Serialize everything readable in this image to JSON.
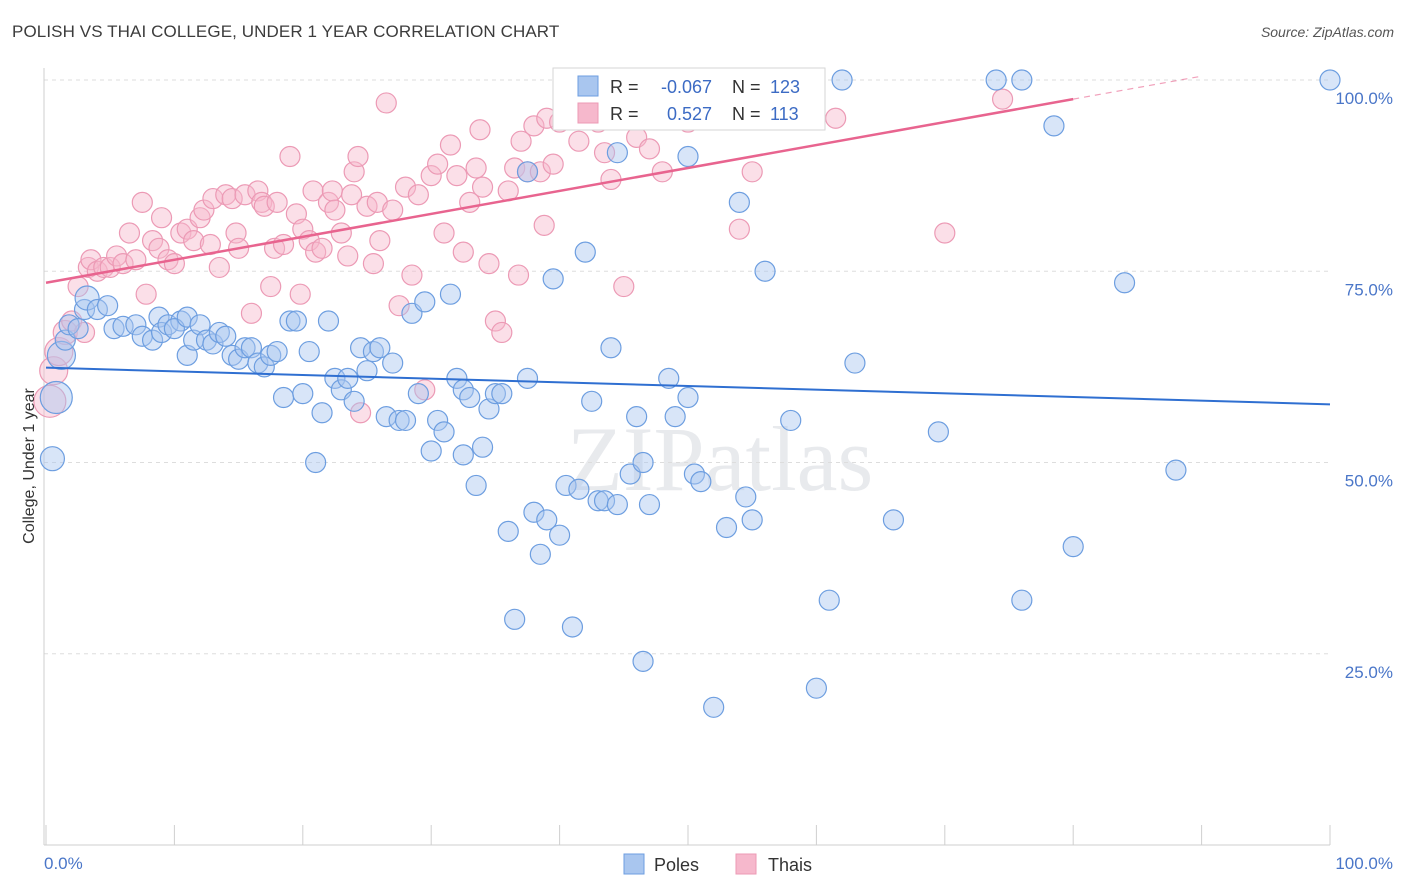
{
  "header": {
    "title": "POLISH VS THAI COLLEGE, UNDER 1 YEAR CORRELATION CHART",
    "source": "Source: ZipAtlas.com"
  },
  "watermark": "ZIPatlas",
  "colors": {
    "poles_fill": "#a9c6ef",
    "poles_stroke": "#6d9ee0",
    "poles_line": "#2f6fd1",
    "thais_fill": "#f6b8cc",
    "thais_stroke": "#ec9ab5",
    "thais_line": "#e8648f",
    "grid": "#dddddd",
    "tick_text": "#4a76c8"
  },
  "legend": {
    "rows": [
      {
        "r_label": "R =",
        "r_value": "-0.067",
        "n_label": "N =",
        "n_value": "123"
      },
      {
        "r_label": "R =",
        "r_value": "0.527",
        "n_label": "N =",
        "n_value": "113"
      }
    ]
  },
  "bottom_legend": {
    "poles": "Poles",
    "thais": "Thais"
  },
  "chart_data": {
    "type": "scatter",
    "title": "POLISH VS THAI COLLEGE, UNDER 1 YEAR CORRELATION CHART",
    "xlabel": "",
    "ylabel": "College, Under 1 year",
    "xlim": [
      0,
      100
    ],
    "ylim": [
      0,
      100
    ],
    "x_tick_labels": [
      "0.0%",
      "100.0%"
    ],
    "y_tick_labels": [
      "25.0%",
      "50.0%",
      "75.0%",
      "100.0%"
    ],
    "y_ticks": [
      25,
      50,
      75,
      100
    ],
    "grid": true,
    "legend_position": "top-center",
    "series": [
      {
        "name": "Poles",
        "R": -0.067,
        "N": 123,
        "trend": {
          "x": [
            0,
            100
          ],
          "y": [
            62.4,
            57.6
          ]
        },
        "points": [
          [
            0.5,
            50.5,
            12
          ],
          [
            0.8,
            58.5,
            16
          ],
          [
            1.2,
            64.0,
            14
          ],
          [
            1.5,
            66.0,
            10
          ],
          [
            1.8,
            68.0,
            10
          ],
          [
            2.5,
            67.5,
            10
          ],
          [
            3.0,
            70.0,
            10
          ],
          [
            3.2,
            71.5,
            12
          ],
          [
            4.0,
            70.0,
            10
          ],
          [
            4.8,
            70.5,
            10
          ],
          [
            5.3,
            67.5,
            10
          ],
          [
            6.0,
            67.8,
            10
          ],
          [
            7.0,
            68.0,
            10
          ],
          [
            7.5,
            66.5,
            10
          ],
          [
            8.3,
            66.0,
            10
          ],
          [
            8.8,
            69.0,
            10
          ],
          [
            9.0,
            67.0,
            10
          ],
          [
            9.5,
            68.0,
            10
          ],
          [
            10.5,
            68.5,
            10
          ],
          [
            10.0,
            67.5,
            10
          ],
          [
            11.0,
            69.0,
            10
          ],
          [
            11.0,
            64.0,
            10
          ],
          [
            11.5,
            66.0,
            10
          ],
          [
            12.0,
            68.0,
            10
          ],
          [
            12.5,
            66.0,
            10
          ],
          [
            13.0,
            65.5,
            10
          ],
          [
            13.5,
            67.0,
            10
          ],
          [
            14.0,
            66.5,
            10
          ],
          [
            14.5,
            64.0,
            10
          ],
          [
            15.0,
            63.5,
            10
          ],
          [
            15.5,
            65.0,
            10
          ],
          [
            16.0,
            65.0,
            10
          ],
          [
            16.5,
            63.0,
            10
          ],
          [
            17.0,
            62.5,
            10
          ],
          [
            17.5,
            64.0,
            10
          ],
          [
            18.0,
            64.5,
            10
          ],
          [
            18.5,
            58.5,
            10
          ],
          [
            19.0,
            68.5,
            10
          ],
          [
            19.5,
            68.5,
            10
          ],
          [
            20.0,
            59.0,
            10
          ],
          [
            20.5,
            64.5,
            10
          ],
          [
            21.0,
            50.0,
            10
          ],
          [
            21.5,
            56.5,
            10
          ],
          [
            22.0,
            68.5,
            10
          ],
          [
            22.5,
            61.0,
            10
          ],
          [
            23.0,
            59.5,
            10
          ],
          [
            23.5,
            61.0,
            10
          ],
          [
            24.0,
            58.0,
            10
          ],
          [
            24.5,
            65.0,
            10
          ],
          [
            25.0,
            62.0,
            10
          ],
          [
            25.5,
            64.5,
            10
          ],
          [
            26.0,
            65.0,
            10
          ],
          [
            26.5,
            56.0,
            10
          ],
          [
            27.0,
            63.0,
            10
          ],
          [
            27.5,
            55.5,
            10
          ],
          [
            28.0,
            55.5,
            10
          ],
          [
            28.5,
            69.5,
            10
          ],
          [
            29.0,
            59.0,
            10
          ],
          [
            29.5,
            71.0,
            10
          ],
          [
            30.0,
            51.5,
            10
          ],
          [
            30.5,
            55.5,
            10
          ],
          [
            31.0,
            54.0,
            10
          ],
          [
            31.5,
            72.0,
            10
          ],
          [
            32.0,
            61.0,
            10
          ],
          [
            32.5,
            59.5,
            10
          ],
          [
            32.5,
            51.0,
            10
          ],
          [
            33.0,
            58.5,
            10
          ],
          [
            33.5,
            47.0,
            10
          ],
          [
            34.0,
            52.0,
            10
          ],
          [
            34.5,
            57.0,
            10
          ],
          [
            35.0,
            59.0,
            10
          ],
          [
            35.5,
            59.0,
            10
          ],
          [
            36.0,
            41.0,
            10
          ],
          [
            36.5,
            29.5,
            10
          ],
          [
            37.5,
            88.0,
            10
          ],
          [
            37.5,
            61.0,
            10
          ],
          [
            38.0,
            43.5,
            10
          ],
          [
            38.5,
            38.0,
            10
          ],
          [
            39.0,
            42.5,
            10
          ],
          [
            39.5,
            74.0,
            10
          ],
          [
            40.0,
            40.5,
            10
          ],
          [
            40.5,
            47.0,
            10
          ],
          [
            41.0,
            28.5,
            10
          ],
          [
            41.5,
            46.5,
            10
          ],
          [
            42.0,
            77.5,
            10
          ],
          [
            42.5,
            58.0,
            10
          ],
          [
            43.0,
            45.0,
            10
          ],
          [
            43.5,
            45.0,
            10
          ],
          [
            44.0,
            65.0,
            10
          ],
          [
            44.5,
            44.5,
            10
          ],
          [
            44.5,
            90.5,
            10
          ],
          [
            45.5,
            48.5,
            10
          ],
          [
            46.0,
            56.0,
            10
          ],
          [
            46.5,
            50.0,
            10
          ],
          [
            46.5,
            24.0,
            10
          ],
          [
            47.0,
            44.5,
            10
          ],
          [
            48.0,
            100.0,
            10
          ],
          [
            48.5,
            61.0,
            10
          ],
          [
            49.0,
            56.0,
            10
          ],
          [
            50.0,
            90.0,
            10
          ],
          [
            50.0,
            58.5,
            10
          ],
          [
            50.5,
            48.5,
            10
          ],
          [
            51.0,
            47.5,
            10
          ],
          [
            53.0,
            41.5,
            10
          ],
          [
            54.0,
            84.0,
            10
          ],
          [
            54.5,
            45.5,
            10
          ],
          [
            55.0,
            42.5,
            10
          ],
          [
            56.0,
            75.0,
            10
          ],
          [
            52.0,
            18.0,
            10
          ],
          [
            58.0,
            55.5,
            10
          ],
          [
            60.0,
            20.5,
            10
          ],
          [
            61.0,
            32.0,
            10
          ],
          [
            62.0,
            100.0,
            10
          ],
          [
            63.0,
            63.0,
            10
          ],
          [
            66.0,
            42.5,
            10
          ],
          [
            69.5,
            54.0,
            10
          ],
          [
            74.0,
            100.0,
            10
          ],
          [
            76.0,
            100.0,
            10
          ],
          [
            76.0,
            32.0,
            10
          ],
          [
            78.5,
            94.0,
            10
          ],
          [
            80.0,
            39.0,
            10
          ],
          [
            84.0,
            73.5,
            10
          ],
          [
            88.0,
            49.0,
            10
          ],
          [
            100.0,
            100.0,
            10
          ]
        ]
      },
      {
        "name": "Thais",
        "R": 0.527,
        "N": 113,
        "trend": {
          "x": [
            0,
            80
          ],
          "y": [
            73.5,
            97.5
          ]
        },
        "points": [
          [
            0.3,
            58.0,
            16
          ],
          [
            0.6,
            62.0,
            14
          ],
          [
            1.0,
            64.5,
            14
          ],
          [
            1.5,
            67.0,
            12
          ],
          [
            2.0,
            68.5,
            10
          ],
          [
            2.5,
            73.0,
            10
          ],
          [
            3.0,
            67.0,
            10
          ],
          [
            3.3,
            75.5,
            10
          ],
          [
            3.5,
            76.5,
            10
          ],
          [
            4.0,
            75.0,
            10
          ],
          [
            4.5,
            75.5,
            10
          ],
          [
            5.0,
            75.5,
            10
          ],
          [
            5.5,
            77.0,
            10
          ],
          [
            6.0,
            76.0,
            10
          ],
          [
            6.5,
            80.0,
            10
          ],
          [
            7.0,
            76.5,
            10
          ],
          [
            7.5,
            84.0,
            10
          ],
          [
            7.8,
            72.0,
            10
          ],
          [
            8.3,
            79.0,
            10
          ],
          [
            8.8,
            78.0,
            10
          ],
          [
            9.0,
            82.0,
            10
          ],
          [
            9.5,
            76.5,
            10
          ],
          [
            10.0,
            76.0,
            10
          ],
          [
            10.5,
            80.0,
            10
          ],
          [
            11.0,
            80.5,
            10
          ],
          [
            11.5,
            79.0,
            10
          ],
          [
            12.0,
            82.0,
            10
          ],
          [
            12.3,
            83.0,
            10
          ],
          [
            12.8,
            78.5,
            10
          ],
          [
            13.0,
            84.5,
            10
          ],
          [
            13.5,
            75.5,
            10
          ],
          [
            14.0,
            85.0,
            10
          ],
          [
            14.5,
            84.5,
            10
          ],
          [
            14.8,
            80.0,
            10
          ],
          [
            15.0,
            78.0,
            10
          ],
          [
            15.5,
            85.0,
            10
          ],
          [
            16.0,
            69.5,
            10
          ],
          [
            16.5,
            85.5,
            10
          ],
          [
            16.8,
            84.0,
            10
          ],
          [
            17.0,
            83.5,
            10
          ],
          [
            17.5,
            73.0,
            10
          ],
          [
            17.8,
            78.0,
            10
          ],
          [
            18.0,
            84.0,
            10
          ],
          [
            18.5,
            78.5,
            10
          ],
          [
            19.0,
            90.0,
            10
          ],
          [
            19.5,
            82.5,
            10
          ],
          [
            19.8,
            72.0,
            10
          ],
          [
            20.0,
            80.5,
            10
          ],
          [
            20.5,
            79.0,
            10
          ],
          [
            20.8,
            85.5,
            10
          ],
          [
            21.0,
            77.5,
            10
          ],
          [
            21.5,
            78.0,
            10
          ],
          [
            22.0,
            84.0,
            10
          ],
          [
            22.3,
            85.5,
            10
          ],
          [
            22.5,
            83.0,
            10
          ],
          [
            23.0,
            80.0,
            10
          ],
          [
            23.5,
            77.0,
            10
          ],
          [
            23.8,
            85.0,
            10
          ],
          [
            24.0,
            88.0,
            10
          ],
          [
            24.3,
            90.0,
            10
          ],
          [
            24.5,
            56.5,
            10
          ],
          [
            25.0,
            83.5,
            10
          ],
          [
            25.5,
            76.0,
            10
          ],
          [
            25.8,
            84.0,
            10
          ],
          [
            26.0,
            79.0,
            10
          ],
          [
            26.5,
            97.0,
            10
          ],
          [
            27.0,
            83.0,
            10
          ],
          [
            27.5,
            70.5,
            10
          ],
          [
            28.0,
            86.0,
            10
          ],
          [
            28.5,
            74.5,
            10
          ],
          [
            29.0,
            85.0,
            10
          ],
          [
            29.5,
            59.5,
            10
          ],
          [
            30.0,
            87.5,
            10
          ],
          [
            30.5,
            89.0,
            10
          ],
          [
            31.0,
            80.0,
            10
          ],
          [
            31.5,
            91.5,
            10
          ],
          [
            32.0,
            87.5,
            10
          ],
          [
            32.5,
            77.5,
            10
          ],
          [
            33.0,
            84.0,
            10
          ],
          [
            33.5,
            88.5,
            10
          ],
          [
            33.8,
            93.5,
            10
          ],
          [
            34.0,
            86.0,
            10
          ],
          [
            34.5,
            76.0,
            10
          ],
          [
            35.0,
            68.5,
            10
          ],
          [
            35.5,
            67.0,
            10
          ],
          [
            36.0,
            85.5,
            10
          ],
          [
            36.5,
            88.5,
            10
          ],
          [
            36.8,
            74.5,
            10
          ],
          [
            37.0,
            92.0,
            10
          ],
          [
            37.5,
            88.0,
            10
          ],
          [
            38.0,
            94.0,
            10
          ],
          [
            38.5,
            88.0,
            10
          ],
          [
            38.8,
            81.0,
            10
          ],
          [
            39.0,
            95.0,
            10
          ],
          [
            39.5,
            89.0,
            10
          ],
          [
            40.0,
            94.5,
            10
          ],
          [
            41.5,
            92.0,
            10
          ],
          [
            42.0,
            98.0,
            10
          ],
          [
            43.0,
            94.5,
            10
          ],
          [
            43.5,
            90.5,
            10
          ],
          [
            44.0,
            87.0,
            10
          ],
          [
            44.5,
            95.5,
            10
          ],
          [
            45.0,
            73.0,
            10
          ],
          [
            46.0,
            92.5,
            10
          ],
          [
            47.0,
            91.0,
            10
          ],
          [
            48.0,
            88.0,
            10
          ],
          [
            50.0,
            94.5,
            10
          ],
          [
            52.0,
            95.0,
            10
          ],
          [
            53.0,
            98.0,
            10
          ],
          [
            54.0,
            80.5,
            10
          ],
          [
            55.0,
            88.0,
            10
          ],
          [
            58.0,
            97.0,
            10
          ],
          [
            61.5,
            95.0,
            10
          ],
          [
            70.0,
            80.0,
            10
          ],
          [
            74.5,
            97.5,
            10
          ]
        ]
      }
    ]
  }
}
